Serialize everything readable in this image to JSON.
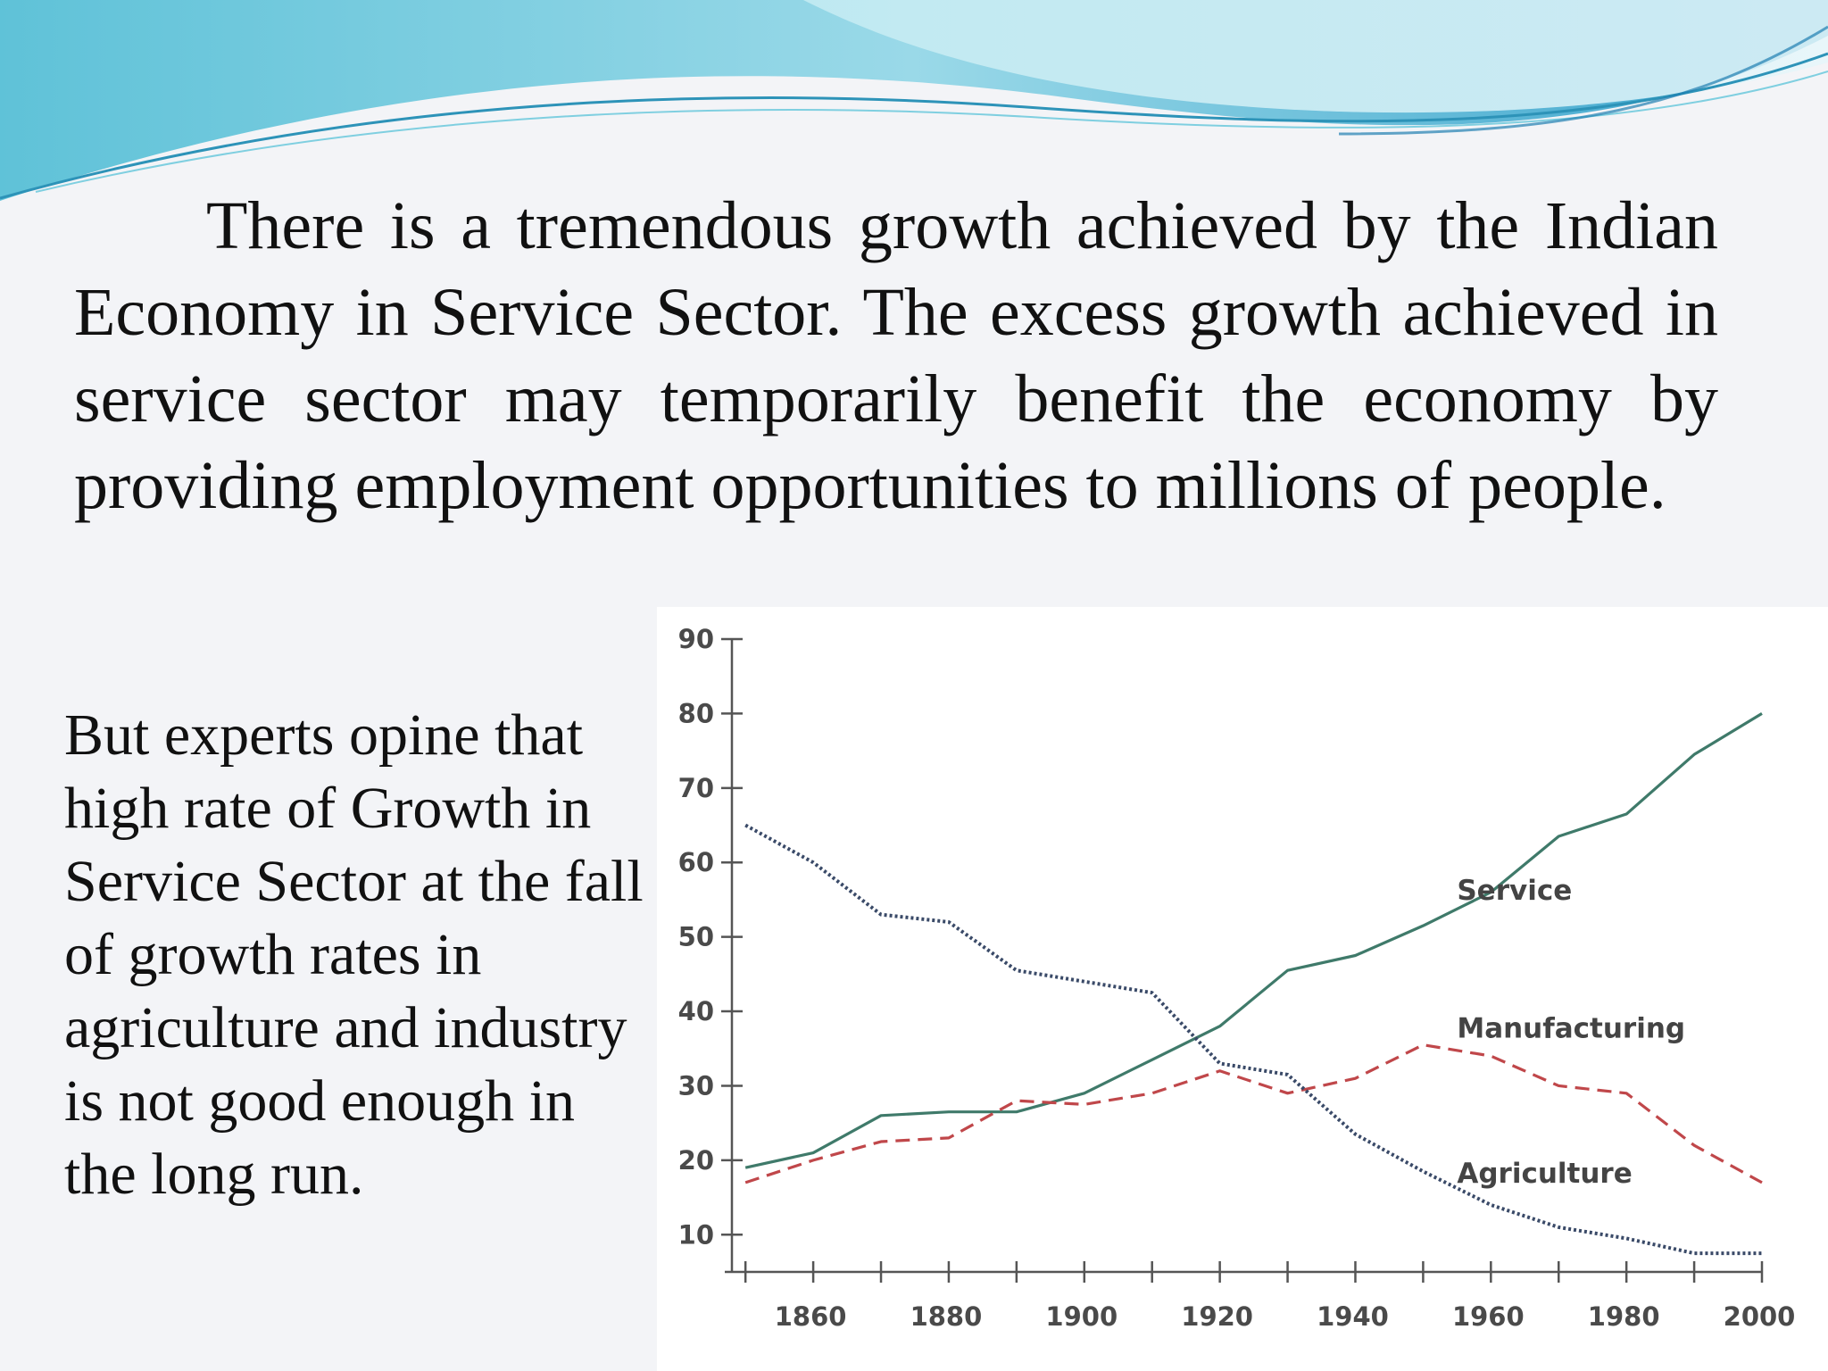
{
  "slide": {
    "main_text": "There is a tremendous growth achieved by the Indian Economy in Service Sector. The excess growth achieved in service sector may temporarily benefit the economy by providing employment opportunities to millions of people.",
    "side_text": "But experts opine that high rate of Growth in Service Sector at the fall of growth rates in agriculture and industry is not good enough in the long run."
  },
  "colors": {
    "background": "#f3f4f7",
    "chart_background": "#ffffff",
    "service": "#3f7a6a",
    "manufacturing": "#c0474a",
    "agriculture": "#3a4a68",
    "axis": "#555555",
    "wave_light": "#b9e6f0",
    "wave_mid": "#6ec8dc",
    "wave_dark": "#2f97c4"
  },
  "chart_data": {
    "type": "line",
    "x": [
      1850,
      1860,
      1870,
      1880,
      1890,
      1900,
      1910,
      1920,
      1930,
      1940,
      1950,
      1960,
      1970,
      1980,
      1990,
      2000
    ],
    "x_ticks": [
      1860,
      1880,
      1900,
      1920,
      1940,
      1960,
      1980,
      2000
    ],
    "x_tick_labels": [
      "1860",
      "1880",
      "1900",
      "1920",
      "1940",
      "1960",
      "1980",
      "2000"
    ],
    "y_ticks": [
      10,
      20,
      30,
      40,
      50,
      60,
      70,
      80,
      90
    ],
    "y_tick_labels": [
      "10",
      "20",
      "30",
      "40",
      "50",
      "60",
      "70",
      "80",
      "90"
    ],
    "xlim": [
      1848,
      2000
    ],
    "ylim": [
      5,
      90
    ],
    "grid": false,
    "legend": "inline labels near line ends",
    "series": [
      {
        "name": "Service",
        "style": "solid",
        "values": [
          19,
          21,
          26,
          26.5,
          26.5,
          29,
          33.5,
          38,
          45.5,
          47.5,
          51.5,
          56,
          63.5,
          66.5,
          74.5,
          80
        ]
      },
      {
        "name": "Manufacturing",
        "style": "dashed",
        "values": [
          17,
          20,
          22.5,
          23,
          28,
          27.5,
          29,
          32,
          29,
          31,
          35.5,
          34,
          30,
          29,
          22,
          17
        ]
      },
      {
        "name": "Agriculture",
        "style": "dotted",
        "values": [
          65,
          60,
          53,
          52,
          45.5,
          44,
          42.5,
          33,
          31.5,
          23.5,
          18.5,
          14,
          11,
          9.5,
          7.5,
          7.5
        ]
      }
    ]
  }
}
